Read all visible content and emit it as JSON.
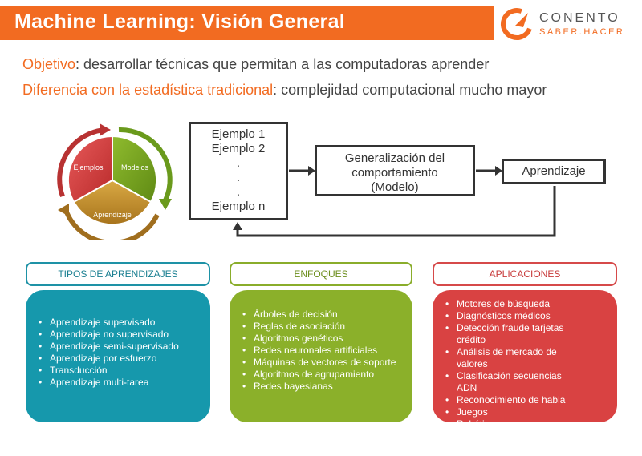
{
  "header": {
    "title": "Machine Learning: Visión General"
  },
  "logo": {
    "name": "CONENTO",
    "tagline": "SABER.HACER"
  },
  "objectives": [
    {
      "label": "Objetivo",
      "text": ": desarrollar técnicas que permitan a las computadoras aprender"
    },
    {
      "label": "Diferencia con la estadística tradicional",
      "text": ": complejidad computacional mucho mayor"
    }
  ],
  "cycle": {
    "segments": [
      "Ejemplos",
      "Modelos",
      "Aprendizaje"
    ]
  },
  "flow": {
    "examples": [
      "Ejemplo 1",
      "Ejemplo 2",
      ".",
      ".",
      ".",
      "Ejemplo n"
    ],
    "model": [
      "Generalización del",
      "comportamiento",
      "(Modelo)"
    ],
    "learning": "Aprendizaje"
  },
  "categories": [
    {
      "title": "TIPOS DE APRENDIZAJES",
      "items": [
        "Aprendizaje supervisado",
        "Aprendizaje no supervisado",
        "Aprendizaje semi-supervisado",
        "Aprendizaje por esfuerzo",
        "Transducción",
        "Aprendizaje multi-tarea"
      ]
    },
    {
      "title": "ENFOQUES",
      "items": [
        "Árboles de decisión",
        "Reglas de asociación",
        "Algoritmos genéticos",
        "Redes neuronales artificiales",
        "Máquinas de vectores de soporte",
        "Algoritmos de agrupamiento",
        "Redes bayesianas"
      ]
    },
    {
      "title": "APLICACIONES",
      "items": [
        "Motores de búsqueda",
        "Diagnósticos médicos",
        "Detección fraude tarjetas crédito",
        "Análisis de mercado de valores",
        "Clasificación secuencias ADN",
        "Reconocimiento de habla",
        "Juegos",
        "Robótica"
      ]
    }
  ],
  "colors": {
    "brand_orange": "#f26b21",
    "teal": "#1698ac",
    "green": "#8bb02a",
    "red": "#d94242",
    "gold": "#c9952e"
  }
}
